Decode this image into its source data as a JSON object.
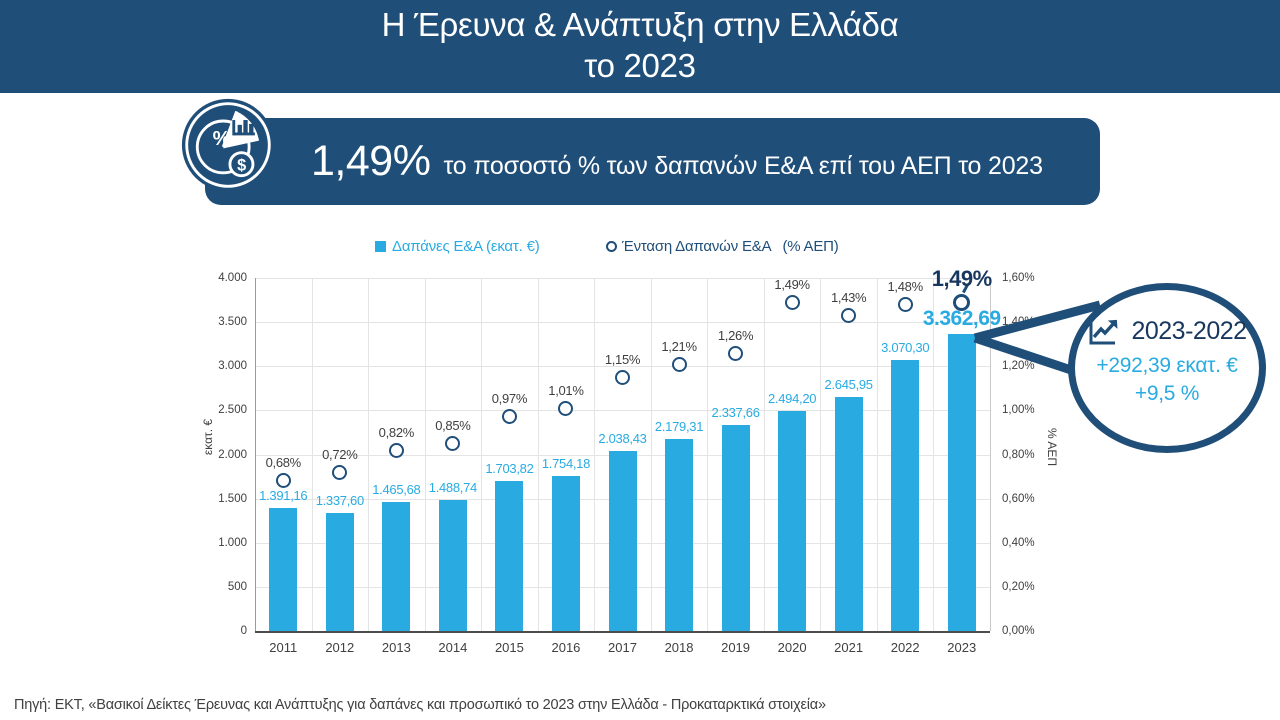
{
  "header": {
    "title_line1": "Η Έρευνα & Ανάπτυξη στην Ελλάδα",
    "title_line2": "το 2023"
  },
  "highlight": {
    "big": "1,49%",
    "rest": "το ποσοστό % των δαπανών Ε&Α επί του ΑΕΠ το 2023"
  },
  "legend": {
    "bars": "Δαπάνες Ε&Α (εκατ. €)",
    "line": "Ένταση Δαπανών Ε&Α   (% ΑΕΠ)"
  },
  "chart_data": {
    "type": "bar+scatter",
    "categories": [
      "2011",
      "2012",
      "2013",
      "2014",
      "2015",
      "2016",
      "2017",
      "2018",
      "2019",
      "2020",
      "2021",
      "2022",
      "2023"
    ],
    "series": [
      {
        "name": "Δαπάνες Ε&Α (εκατ. €)",
        "type": "bar",
        "axis": "left",
        "color": "#29ABE2",
        "values": [
          1391.16,
          1337.6,
          1465.68,
          1488.74,
          1703.82,
          1754.18,
          2038.43,
          2179.31,
          2337.66,
          2494.2,
          2645.95,
          3070.3,
          3362.69
        ],
        "labels": [
          "1.391,16",
          "1.337,60",
          "1.465,68",
          "1.488,74",
          "1.703,82",
          "1.754,18",
          "2.038,43",
          "2.179,31",
          "2.337,66",
          "2.494,20",
          "2.645,95",
          "3.070,30",
          "3.362,69"
        ]
      },
      {
        "name": "Ένταση Δαπανών Ε&Α (% ΑΕΠ)",
        "type": "scatter",
        "axis": "right",
        "color": "#1F4E79",
        "values": [
          0.68,
          0.72,
          0.82,
          0.85,
          0.97,
          1.01,
          1.15,
          1.21,
          1.26,
          1.49,
          1.43,
          1.48,
          1.49
        ],
        "labels": [
          "0,68%",
          "0,72%",
          "0,82%",
          "0,85%",
          "0,97%",
          "1,01%",
          "1,15%",
          "1,21%",
          "1,26%",
          "1,49%",
          "1,43%",
          "1,48%",
          "1,49%"
        ]
      }
    ],
    "left_axis": {
      "title": "εκατ. €",
      "min": 0,
      "max": 4000,
      "step": 500,
      "tick_labels": [
        "4.000",
        "3.500",
        "3.000",
        "2.500",
        "2.000",
        "1.500",
        "1.000",
        "500",
        "0"
      ]
    },
    "right_axis": {
      "title": "% ΑΕΠ",
      "min": 0,
      "max": 1.6,
      "step": 0.2,
      "tick_labels": [
        "1,60%",
        "1,40%",
        "1,20%",
        "1,00%",
        "0,80%",
        "0,60%",
        "0,40%",
        "0,20%",
        "0,00%"
      ]
    },
    "grid": true,
    "legend_position": "top",
    "highlight_index": 12
  },
  "callout": {
    "title": "2023-2022",
    "line1": "+292,39 εκατ. €",
    "line2": "+9,5 %"
  },
  "footer": {
    "source": "Πηγή: ΕΚΤ, «Βασικοί Δείκτες Έρευνας και Ανάπτυξης για δαπάνες και προσωπικό το 2023 στην Ελλάδα - Προκαταρκτικά στοιχεία»"
  },
  "colors": {
    "navy": "#1F4E79",
    "navy_dark": "#17375E",
    "cyan": "#29ABE2",
    "text": "#404040",
    "grid": "#E4E4E4"
  }
}
